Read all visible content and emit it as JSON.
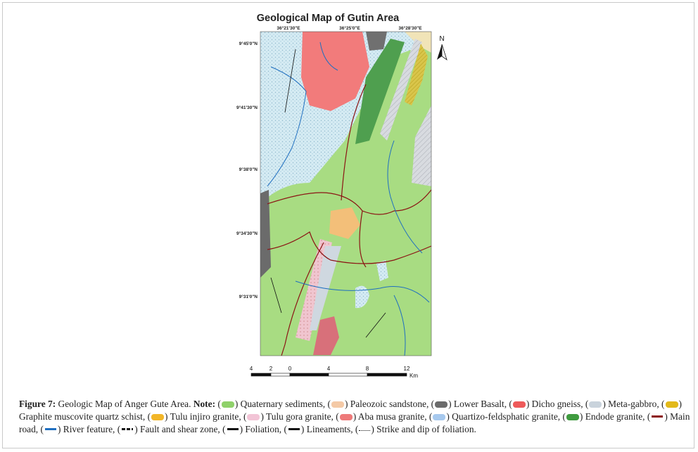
{
  "figure": {
    "title": "Geological Map of Gutin Area",
    "top_coords": [
      "36°21'30\"E",
      "36°25'0\"E",
      "36°28'30\"E"
    ],
    "left_coords": [
      "9°45'0\"N",
      "9°41'30\"N",
      "9°38'0\"N",
      "9°34'30\"N",
      "9°31'0\"N"
    ],
    "north": "N",
    "scale_labels": [
      "4",
      "2",
      "0",
      "4",
      "8",
      "12"
    ],
    "scale_unit": "Km"
  },
  "caption": {
    "label": "Figure 7:",
    "text": " Geologic Map of Anger Gute Area. ",
    "note": "Note:",
    "segments": [
      " (",
      ") Quaternary sediments, (",
      ") Paleozoic sandstone, (",
      ") Lower Basalt, (",
      ") Dicho gneiss, (",
      ") Meta-gabbro, (",
      ") Graphite muscovite quartz schist, (",
      ") Tulu injiro granite, (",
      ") Tulu gora granite, (",
      ") Aba musa granite, (",
      ") Quartizo-feldsphatic granite, (",
      ") Endode granite, (",
      ") Main road, (",
      ") River feature, (",
      ") Fault and shear zone, (",
      ") Foliation, (",
      ") Lineaments, (",
      ") Strike and dip of foliation."
    ],
    "legend_colors": [
      "#8fd16a",
      "#f4c9a6",
      "#6b6b6b",
      "#ee5a5a",
      "#c9d3dc",
      "#e2b91a",
      "#f2b628",
      "#f2c4d6",
      "#ee7a7a",
      "#a7c9ee",
      "#3f9b3f",
      "#8b0f0f",
      "#1f6fc0",
      "#111111",
      "#111111",
      "#111111",
      "#111111"
    ]
  }
}
